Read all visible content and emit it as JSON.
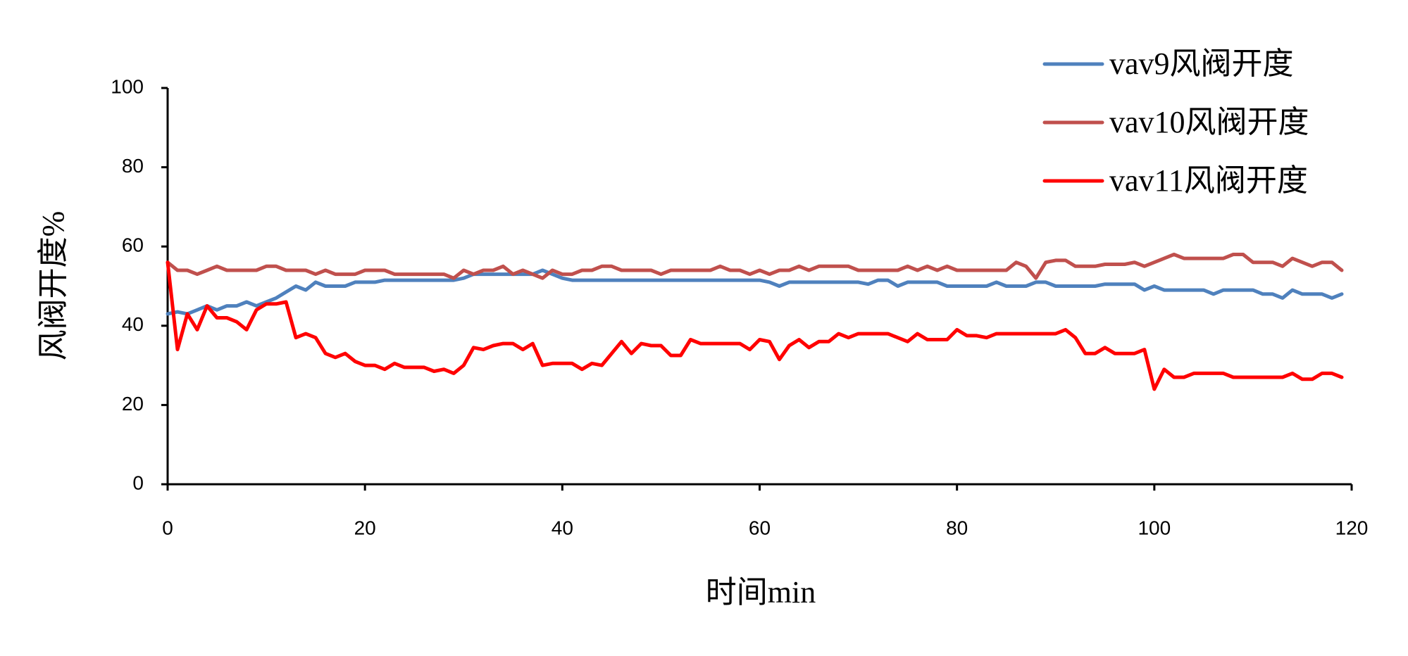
{
  "chart_data": {
    "type": "line",
    "xlabel": "时间min",
    "ylabel": "风阀开度%",
    "x": [
      0,
      1,
      2,
      3,
      4,
      5,
      6,
      7,
      8,
      9,
      10,
      11,
      12,
      13,
      14,
      15,
      16,
      17,
      18,
      19,
      20,
      21,
      22,
      23,
      24,
      25,
      26,
      27,
      28,
      29,
      30,
      31,
      32,
      33,
      34,
      35,
      36,
      37,
      38,
      39,
      40,
      41,
      42,
      43,
      44,
      45,
      46,
      47,
      48,
      49,
      50,
      51,
      52,
      53,
      54,
      55,
      56,
      57,
      58,
      59,
      60,
      61,
      62,
      63,
      64,
      65,
      66,
      67,
      68,
      69,
      70,
      71,
      72,
      73,
      74,
      75,
      76,
      77,
      78,
      79,
      80,
      81,
      82,
      83,
      84,
      85,
      86,
      87,
      88,
      89,
      90,
      91,
      92,
      93,
      94,
      95,
      96,
      97,
      98,
      99,
      100,
      101,
      102,
      103,
      104,
      105,
      106,
      107,
      108,
      109,
      110,
      111,
      112,
      113,
      114,
      115,
      116,
      117,
      118,
      119
    ],
    "series": [
      {
        "name": "vav9风阀开度",
        "color": "#4f81bd",
        "values": [
          43,
          43.5,
          43,
          44,
          45,
          44,
          45,
          45,
          46,
          45,
          46,
          47,
          48.5,
          50,
          49,
          51,
          50,
          50,
          50,
          51,
          51,
          51,
          51.5,
          51.5,
          51.5,
          51.5,
          51.5,
          51.5,
          51.5,
          51.5,
          52,
          53,
          53,
          53,
          53,
          53,
          53,
          53,
          54,
          53,
          52,
          51.5,
          51.5,
          51.5,
          51.5,
          51.5,
          51.5,
          51.5,
          51.5,
          51.5,
          51.5,
          51.5,
          51.5,
          51.5,
          51.5,
          51.5,
          51.5,
          51.5,
          51.5,
          51.5,
          51.5,
          51,
          50,
          51,
          51,
          51,
          51,
          51,
          51,
          51,
          51,
          50.5,
          51.5,
          51.5,
          50,
          51,
          51,
          51,
          51,
          50,
          50,
          50,
          50,
          50,
          51,
          50,
          50,
          50,
          51,
          51,
          50,
          50,
          50,
          50,
          50,
          50.5,
          50.5,
          50.5,
          50.5,
          49,
          50,
          49,
          49,
          49,
          49,
          49,
          48,
          49,
          49,
          49,
          49,
          48,
          48,
          47,
          49,
          48,
          48,
          48,
          47,
          48
        ]
      },
      {
        "name": "vav10风阀开度",
        "color": "#c0504d",
        "values": [
          56,
          54,
          54,
          53,
          54,
          55,
          54,
          54,
          54,
          54,
          55,
          55,
          54,
          54,
          54,
          53,
          54,
          53,
          53,
          53,
          54,
          54,
          54,
          53,
          53,
          53,
          53,
          53,
          53,
          52,
          54,
          53,
          54,
          54,
          55,
          53,
          54,
          53,
          52,
          54,
          53,
          53,
          54,
          54,
          55,
          55,
          54,
          54,
          54,
          54,
          53,
          54,
          54,
          54,
          54,
          54,
          55,
          54,
          54,
          53,
          54,
          53,
          54,
          54,
          55,
          54,
          55,
          55,
          55,
          55,
          54,
          54,
          54,
          54,
          54,
          55,
          54,
          55,
          54,
          55,
          54,
          54,
          54,
          54,
          54,
          54,
          56,
          55,
          52,
          56,
          56.5,
          56.5,
          55,
          55,
          55,
          55.5,
          55.5,
          55.5,
          56,
          55,
          56,
          57,
          58,
          57,
          57,
          57,
          57,
          57,
          58,
          58,
          56,
          56,
          56,
          55,
          57,
          56,
          55,
          56,
          56,
          54
        ]
      },
      {
        "name": "vav11风阀开度",
        "color": "#ff0000",
        "values": [
          56,
          34,
          43,
          39,
          45,
          42,
          42,
          41,
          39,
          44,
          45.5,
          45.5,
          46,
          37,
          38,
          37,
          33,
          32,
          33,
          31,
          30,
          30,
          29,
          30.5,
          29.5,
          29.5,
          29.5,
          28.5,
          29,
          28,
          30,
          34.5,
          34,
          35,
          35.5,
          35.5,
          34,
          35.5,
          30,
          30.5,
          30.5,
          30.5,
          29,
          30.5,
          30,
          33,
          36,
          33,
          35.5,
          35,
          35,
          32.5,
          32.5,
          36.5,
          35.5,
          35.5,
          35.5,
          35.5,
          35.5,
          34,
          36.5,
          36,
          31.5,
          35,
          36.5,
          34.5,
          36,
          36,
          38,
          37,
          38,
          38,
          38,
          38,
          37,
          36,
          38,
          36.5,
          36.5,
          36.5,
          39,
          37.5,
          37.5,
          37,
          38,
          38,
          38,
          38,
          38,
          38,
          38,
          39,
          37,
          33,
          33,
          34.5,
          33,
          33,
          33,
          34,
          24,
          29,
          27,
          27,
          28,
          28,
          28,
          28,
          27,
          27,
          27,
          27,
          27,
          27,
          28,
          26.5,
          26.5,
          28,
          28,
          27
        ]
      }
    ],
    "xlim": [
      0,
      120
    ],
    "xticks": [
      0,
      20,
      40,
      60,
      80,
      100,
      120
    ],
    "ylim": [
      0,
      100
    ],
    "yticks": [
      0,
      20,
      40,
      60,
      80,
      100
    ]
  }
}
